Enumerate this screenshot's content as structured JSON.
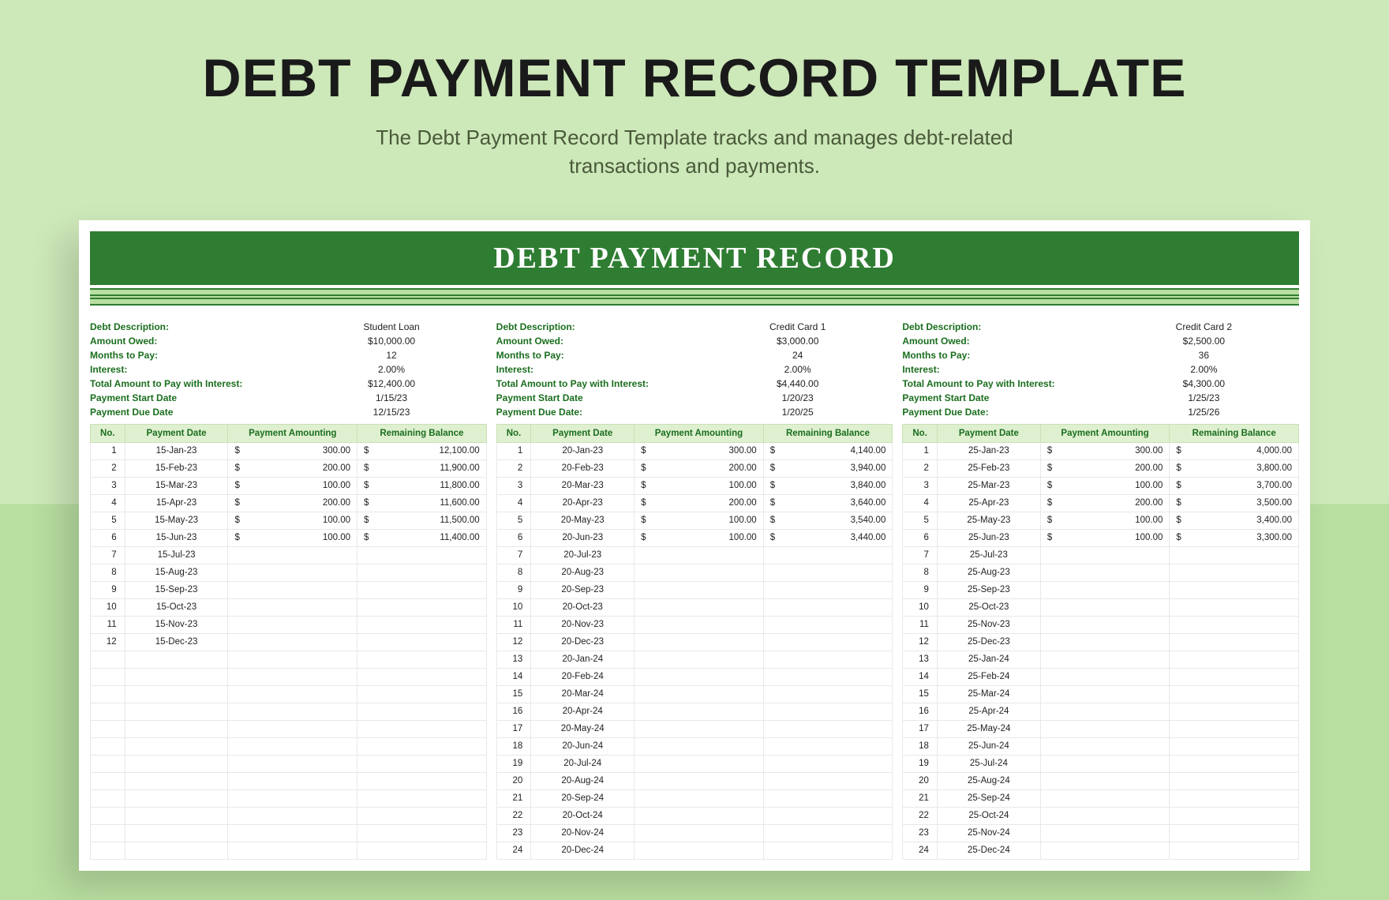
{
  "header": {
    "title": "DEBT PAYMENT RECORD TEMPLATE",
    "subtitle_line1": "The Debt Payment Record Template tracks and manages debt-related",
    "subtitle_line2": "transactions and payments."
  },
  "sheet": {
    "banner": "DEBT PAYMENT RECORD",
    "colors": {
      "banner_bg": "#2f7d32",
      "banner_text": "#ffffff",
      "stripe_bg": "#b8dea0",
      "header_green": "#1a6e1e",
      "th_bg": "#dff0d0",
      "page_bg_top": "#cde8b9",
      "page_bg_bottom": "#b8dea0"
    },
    "info_labels": {
      "desc": "Debt Description:",
      "owed": "Amount Owed:",
      "months": "Months to Pay:",
      "interest": "Interest:",
      "total": "Total Amount to Pay with Interest:",
      "start": "Payment Start Date",
      "due": "Payment Due Date",
      "due_colon": "Payment Due Date:"
    },
    "table_headers": {
      "no": "No.",
      "date": "Payment Date",
      "amount": "Payment Amounting",
      "balance": "Remaining Balance"
    },
    "debts": [
      {
        "desc": "Student Loan",
        "owed": "$10,000.00",
        "months": "12",
        "interest": "2.00%",
        "total": "$12,400.00",
        "start": "1/15/23",
        "due": "12/15/23",
        "due_label_key": "due",
        "rows": [
          {
            "no": "1",
            "date": "15-Jan-23",
            "amt": "300.00",
            "bal": "12,100.00"
          },
          {
            "no": "2",
            "date": "15-Feb-23",
            "amt": "200.00",
            "bal": "11,900.00"
          },
          {
            "no": "3",
            "date": "15-Mar-23",
            "amt": "100.00",
            "bal": "11,800.00"
          },
          {
            "no": "4",
            "date": "15-Apr-23",
            "amt": "200.00",
            "bal": "11,600.00"
          },
          {
            "no": "5",
            "date": "15-May-23",
            "amt": "100.00",
            "bal": "11,500.00"
          },
          {
            "no": "6",
            "date": "15-Jun-23",
            "amt": "100.00",
            "bal": "11,400.00"
          },
          {
            "no": "7",
            "date": "15-Jul-23",
            "amt": "",
            "bal": ""
          },
          {
            "no": "8",
            "date": "15-Aug-23",
            "amt": "",
            "bal": ""
          },
          {
            "no": "9",
            "date": "15-Sep-23",
            "amt": "",
            "bal": ""
          },
          {
            "no": "10",
            "date": "15-Oct-23",
            "amt": "",
            "bal": ""
          },
          {
            "no": "11",
            "date": "15-Nov-23",
            "amt": "",
            "bal": ""
          },
          {
            "no": "12",
            "date": "15-Dec-23",
            "amt": "",
            "bal": ""
          },
          {
            "no": "",
            "date": "",
            "amt": "",
            "bal": ""
          },
          {
            "no": "",
            "date": "",
            "amt": "",
            "bal": ""
          },
          {
            "no": "",
            "date": "",
            "amt": "",
            "bal": ""
          },
          {
            "no": "",
            "date": "",
            "amt": "",
            "bal": ""
          },
          {
            "no": "",
            "date": "",
            "amt": "",
            "bal": ""
          },
          {
            "no": "",
            "date": "",
            "amt": "",
            "bal": ""
          },
          {
            "no": "",
            "date": "",
            "amt": "",
            "bal": ""
          },
          {
            "no": "",
            "date": "",
            "amt": "",
            "bal": ""
          },
          {
            "no": "",
            "date": "",
            "amt": "",
            "bal": ""
          },
          {
            "no": "",
            "date": "",
            "amt": "",
            "bal": ""
          },
          {
            "no": "",
            "date": "",
            "amt": "",
            "bal": ""
          },
          {
            "no": "",
            "date": "",
            "amt": "",
            "bal": ""
          }
        ]
      },
      {
        "desc": "Credit Card 1",
        "owed": "$3,000.00",
        "months": "24",
        "interest": "2.00%",
        "total": "$4,440.00",
        "start": "1/20/23",
        "due": "1/20/25",
        "due_label_key": "due_colon",
        "rows": [
          {
            "no": "1",
            "date": "20-Jan-23",
            "amt": "300.00",
            "bal": "4,140.00"
          },
          {
            "no": "2",
            "date": "20-Feb-23",
            "amt": "200.00",
            "bal": "3,940.00"
          },
          {
            "no": "3",
            "date": "20-Mar-23",
            "amt": "100.00",
            "bal": "3,840.00"
          },
          {
            "no": "4",
            "date": "20-Apr-23",
            "amt": "200.00",
            "bal": "3,640.00"
          },
          {
            "no": "5",
            "date": "20-May-23",
            "amt": "100.00",
            "bal": "3,540.00"
          },
          {
            "no": "6",
            "date": "20-Jun-23",
            "amt": "100.00",
            "bal": "3,440.00"
          },
          {
            "no": "7",
            "date": "20-Jul-23",
            "amt": "",
            "bal": ""
          },
          {
            "no": "8",
            "date": "20-Aug-23",
            "amt": "",
            "bal": ""
          },
          {
            "no": "9",
            "date": "20-Sep-23",
            "amt": "",
            "bal": ""
          },
          {
            "no": "10",
            "date": "20-Oct-23",
            "amt": "",
            "bal": ""
          },
          {
            "no": "11",
            "date": "20-Nov-23",
            "amt": "",
            "bal": ""
          },
          {
            "no": "12",
            "date": "20-Dec-23",
            "amt": "",
            "bal": ""
          },
          {
            "no": "13",
            "date": "20-Jan-24",
            "amt": "",
            "bal": ""
          },
          {
            "no": "14",
            "date": "20-Feb-24",
            "amt": "",
            "bal": ""
          },
          {
            "no": "15",
            "date": "20-Mar-24",
            "amt": "",
            "bal": ""
          },
          {
            "no": "16",
            "date": "20-Apr-24",
            "amt": "",
            "bal": ""
          },
          {
            "no": "17",
            "date": "20-May-24",
            "amt": "",
            "bal": ""
          },
          {
            "no": "18",
            "date": "20-Jun-24",
            "amt": "",
            "bal": ""
          },
          {
            "no": "19",
            "date": "20-Jul-24",
            "amt": "",
            "bal": ""
          },
          {
            "no": "20",
            "date": "20-Aug-24",
            "amt": "",
            "bal": ""
          },
          {
            "no": "21",
            "date": "20-Sep-24",
            "amt": "",
            "bal": ""
          },
          {
            "no": "22",
            "date": "20-Oct-24",
            "amt": "",
            "bal": ""
          },
          {
            "no": "23",
            "date": "20-Nov-24",
            "amt": "",
            "bal": ""
          },
          {
            "no": "24",
            "date": "20-Dec-24",
            "amt": "",
            "bal": ""
          }
        ]
      },
      {
        "desc": "Credit Card 2",
        "owed": "$2,500.00",
        "months": "36",
        "interest": "2.00%",
        "total": "$4,300.00",
        "start": "1/25/23",
        "due": "1/25/26",
        "due_label_key": "due_colon",
        "rows": [
          {
            "no": "1",
            "date": "25-Jan-23",
            "amt": "300.00",
            "bal": "4,000.00"
          },
          {
            "no": "2",
            "date": "25-Feb-23",
            "amt": "200.00",
            "bal": "3,800.00"
          },
          {
            "no": "3",
            "date": "25-Mar-23",
            "amt": "100.00",
            "bal": "3,700.00"
          },
          {
            "no": "4",
            "date": "25-Apr-23",
            "amt": "200.00",
            "bal": "3,500.00"
          },
          {
            "no": "5",
            "date": "25-May-23",
            "amt": "100.00",
            "bal": "3,400.00"
          },
          {
            "no": "6",
            "date": "25-Jun-23",
            "amt": "100.00",
            "bal": "3,300.00"
          },
          {
            "no": "7",
            "date": "25-Jul-23",
            "amt": "",
            "bal": ""
          },
          {
            "no": "8",
            "date": "25-Aug-23",
            "amt": "",
            "bal": ""
          },
          {
            "no": "9",
            "date": "25-Sep-23",
            "amt": "",
            "bal": ""
          },
          {
            "no": "10",
            "date": "25-Oct-23",
            "amt": "",
            "bal": ""
          },
          {
            "no": "11",
            "date": "25-Nov-23",
            "amt": "",
            "bal": ""
          },
          {
            "no": "12",
            "date": "25-Dec-23",
            "amt": "",
            "bal": ""
          },
          {
            "no": "13",
            "date": "25-Jan-24",
            "amt": "",
            "bal": ""
          },
          {
            "no": "14",
            "date": "25-Feb-24",
            "amt": "",
            "bal": ""
          },
          {
            "no": "15",
            "date": "25-Mar-24",
            "amt": "",
            "bal": ""
          },
          {
            "no": "16",
            "date": "25-Apr-24",
            "amt": "",
            "bal": ""
          },
          {
            "no": "17",
            "date": "25-May-24",
            "amt": "",
            "bal": ""
          },
          {
            "no": "18",
            "date": "25-Jun-24",
            "amt": "",
            "bal": ""
          },
          {
            "no": "19",
            "date": "25-Jul-24",
            "amt": "",
            "bal": ""
          },
          {
            "no": "20",
            "date": "25-Aug-24",
            "amt": "",
            "bal": ""
          },
          {
            "no": "21",
            "date": "25-Sep-24",
            "amt": "",
            "bal": ""
          },
          {
            "no": "22",
            "date": "25-Oct-24",
            "amt": "",
            "bal": ""
          },
          {
            "no": "23",
            "date": "25-Nov-24",
            "amt": "",
            "bal": ""
          },
          {
            "no": "24",
            "date": "25-Dec-24",
            "amt": "",
            "bal": ""
          }
        ]
      }
    ]
  }
}
